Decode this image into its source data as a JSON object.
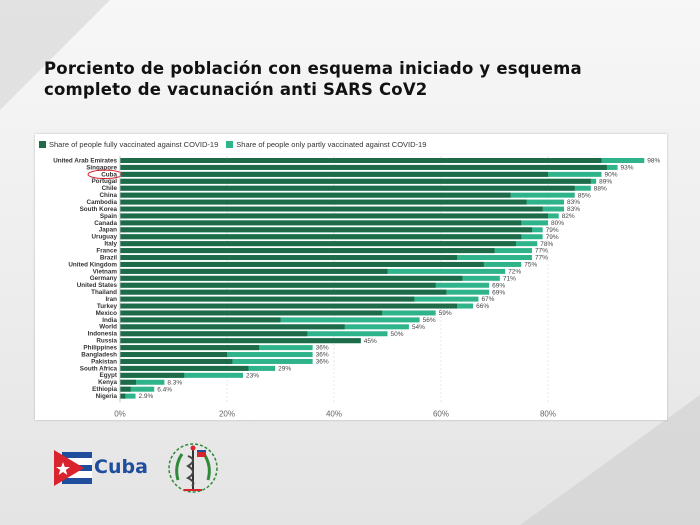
{
  "title": "Porciento de población con esquema iniciado y esquema completo de vacunación anti SARS CoV2",
  "logo": {
    "text": "Cuba",
    "icon": "cuba-flag-triangle-icon"
  },
  "emblem": {
    "icon": "medical-emblem-icon"
  },
  "chart_data": {
    "type": "bar",
    "orientation": "horizontal",
    "stacked": true,
    "legend": [
      {
        "name": "Share of people fully vaccinated against COVID-19",
        "color": "#1e6b4a"
      },
      {
        "name": "Share of people only partly vaccinated against COVID-19",
        "color": "#2fb38a"
      }
    ],
    "categories": [
      "United Arab Emirates",
      "Singapore",
      "Cuba",
      "Portugal",
      "Chile",
      "China",
      "Cambodia",
      "South Korea",
      "Spain",
      "Canada",
      "Japan",
      "Uruguay",
      "Italy",
      "France",
      "Brazil",
      "United Kingdom",
      "Vietnam",
      "Germany",
      "United States",
      "Thailand",
      "Iran",
      "Turkey",
      "Mexico",
      "India",
      "World",
      "Indonesia",
      "Russia",
      "Philippines",
      "Bangladesh",
      "Pakistan",
      "South Africa",
      "Egypt",
      "Kenya",
      "Ethiopia",
      "Nigeria"
    ],
    "fully": [
      90,
      91,
      80,
      88,
      85,
      73,
      76,
      79,
      80,
      75,
      77,
      75,
      74,
      70,
      63,
      68,
      50,
      64,
      59,
      61,
      55,
      63,
      49,
      30,
      42,
      35,
      45,
      26,
      20,
      21,
      24,
      12,
      3,
      2,
      1
    ],
    "total": [
      98,
      93,
      90,
      89,
      88,
      85,
      83,
      83,
      82,
      80,
      79,
      79,
      78,
      77,
      77,
      75,
      72,
      71,
      69,
      69,
      67,
      66,
      59,
      56,
      54,
      50,
      45,
      36,
      36,
      36,
      29,
      23,
      8.3,
      6.4,
      2.9
    ],
    "value_labels": [
      "98%",
      "93%",
      "90%",
      "89%",
      "88%",
      "85%",
      "83%",
      "83%",
      "82%",
      "80%",
      "79%",
      "79%",
      "78%",
      "77%",
      "77%",
      "75%",
      "72%",
      "71%",
      "69%",
      "69%",
      "67%",
      "66%",
      "59%",
      "56%",
      "54%",
      "50%",
      "45%",
      "36%",
      "36%",
      "36%",
      "29%",
      "23%",
      "8.3%",
      "6.4%",
      "2.9%"
    ],
    "highlighted_category": "Cuba",
    "xlim": [
      0,
      100
    ],
    "xticks": [
      0,
      20,
      40,
      60,
      80
    ],
    "xtick_labels": [
      "0%",
      "20%",
      "40%",
      "60%",
      "80%"
    ],
    "grid": "vertical"
  }
}
